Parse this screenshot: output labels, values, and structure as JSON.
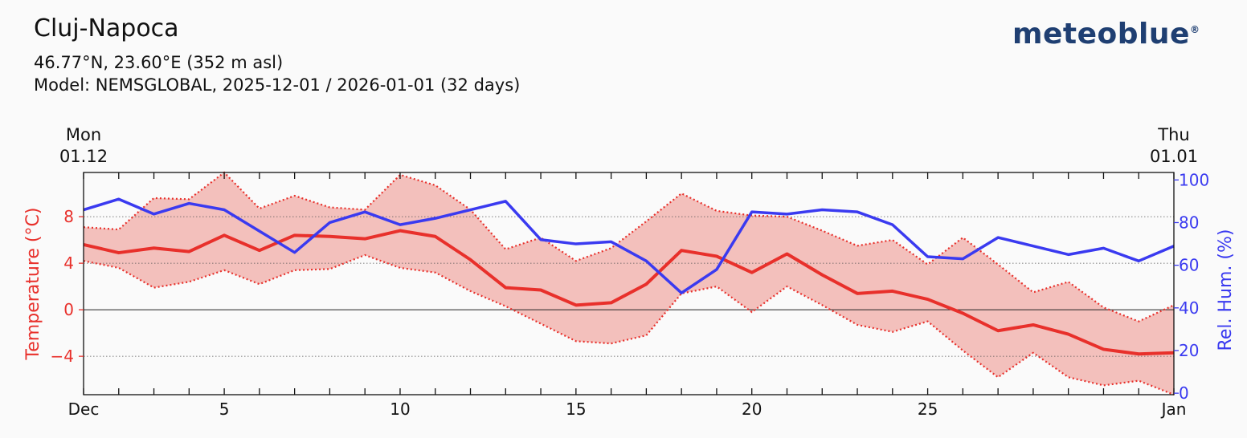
{
  "header": {
    "title": "Cluj-Napoca",
    "coords": "46.77°N, 23.60°E (352 m asl)",
    "model": "Model: NEMSGLOBAL, 2025-12-01 / 2026-01-01 (32 days)",
    "logo": "meteoblue",
    "logo_mark": "®"
  },
  "colors": {
    "temp": "#e8302b",
    "humidity": "#3a3af0",
    "band": "#f3c0bc",
    "text": "#111111"
  },
  "chart_data": {
    "type": "line",
    "top_labels": [
      {
        "day": "Mon",
        "date": "01.12",
        "x": 1
      },
      {
        "day": "Thu",
        "date": "01.01",
        "x": 32
      }
    ],
    "x_range": [
      1,
      32
    ],
    "x_ticks": [
      1,
      2,
      3,
      4,
      5,
      6,
      7,
      8,
      9,
      10,
      11,
      12,
      13,
      14,
      15,
      16,
      17,
      18,
      19,
      20,
      21,
      22,
      23,
      24,
      25,
      26,
      27,
      28,
      29,
      30,
      31,
      32
    ],
    "x_tick_labels": [
      {
        "x": 1,
        "label": "Dec"
      },
      {
        "x": 5,
        "label": "5"
      },
      {
        "x": 10,
        "label": "10"
      },
      {
        "x": 15,
        "label": "15"
      },
      {
        "x": 20,
        "label": "20"
      },
      {
        "x": 25,
        "label": "25"
      },
      {
        "x": 32,
        "label": "Jan"
      }
    ],
    "y_left": {
      "label": "Temperature (°C)",
      "range": [
        -7.3,
        11.8
      ],
      "ticks": [
        8,
        4,
        0,
        -4
      ],
      "tick_labels": [
        "8",
        "4",
        "0",
        "−4"
      ]
    },
    "y_right": {
      "label": "Rel. Hum. (%)",
      "range": [
        -0.7,
        103.5
      ],
      "ticks": [
        100,
        80,
        60,
        40,
        20,
        0
      ],
      "tick_labels": [
        "100",
        "80",
        "60",
        "40",
        "20",
        "0"
      ]
    },
    "gridlines_temp": [
      8,
      4,
      -4
    ],
    "zero_line": 0,
    "series": [
      {
        "name": "Max temperature",
        "axis": "left",
        "style": "dotted",
        "values": [
          7.1,
          6.9,
          9.6,
          9.5,
          11.8,
          8.7,
          9.8,
          8.8,
          8.6,
          11.6,
          10.7,
          8.6,
          5.2,
          6.2,
          4.2,
          5.3,
          7.6,
          10.0,
          8.5,
          8.1,
          8.0,
          6.8,
          5.5,
          6.0,
          3.9,
          6.2,
          3.9,
          1.5,
          2.4,
          0.2,
          -1.0,
          0.4
        ]
      },
      {
        "name": "Mean temperature",
        "axis": "left",
        "style": "solid",
        "values": [
          5.6,
          4.9,
          5.3,
          5.0,
          6.4,
          5.1,
          6.4,
          6.3,
          6.1,
          6.8,
          6.3,
          4.3,
          1.9,
          1.7,
          0.4,
          0.6,
          2.2,
          5.1,
          4.6,
          3.2,
          4.8,
          3.0,
          1.4,
          1.6,
          0.9,
          -0.3,
          -1.8,
          -1.3,
          -2.1,
          -3.4,
          -3.8,
          -3.7
        ]
      },
      {
        "name": "Min temperature",
        "axis": "left",
        "style": "dotted",
        "values": [
          4.2,
          3.6,
          1.9,
          2.4,
          3.4,
          2.2,
          3.4,
          3.5,
          4.7,
          3.6,
          3.2,
          1.6,
          0.3,
          -1.2,
          -2.7,
          -2.9,
          -2.2,
          1.4,
          2.0,
          -0.2,
          2.0,
          0.4,
          -1.3,
          -1.9,
          -1.0,
          -3.5,
          -5.8,
          -3.7,
          -5.8,
          -6.5,
          -6.1,
          -7.3
        ]
      },
      {
        "name": "Relative humidity",
        "axis": "right",
        "style": "solid",
        "values": [
          86,
          91,
          84,
          89,
          86,
          76,
          66,
          80,
          85,
          79,
          82,
          86,
          90,
          72,
          70,
          71,
          62,
          47,
          58,
          85,
          84,
          86,
          85,
          79,
          64,
          63,
          73,
          69,
          65,
          68,
          62,
          69
        ]
      }
    ]
  }
}
